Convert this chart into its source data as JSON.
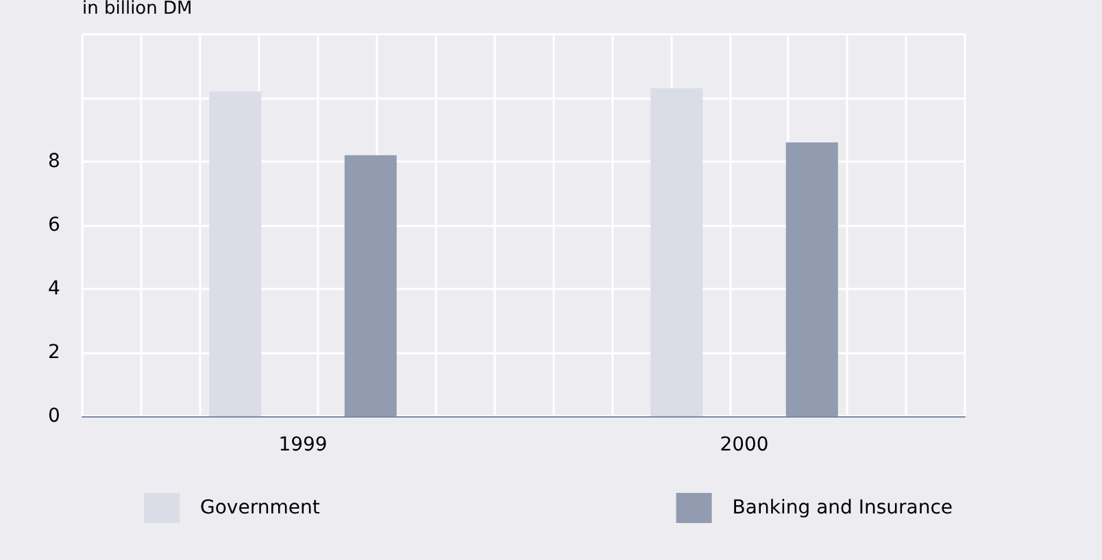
{
  "chart_data": {
    "type": "bar",
    "ylabel": "in billion DM",
    "categories": [
      "1999",
      "2000"
    ],
    "series": [
      {
        "name": "Government",
        "color": "#dadde5",
        "values": [
          10.2,
          10.3
        ]
      },
      {
        "name": "Banking and Insurance",
        "color": "#919cb0",
        "values": [
          8.2,
          8.6
        ]
      }
    ],
    "ylim": [
      0,
      12
    ],
    "yticks": [
      0,
      2,
      4,
      6,
      8,
      {
        "value": 10,
        "label": null
      },
      {
        "value": 12,
        "label": null
      }
    ],
    "grid": true,
    "legend": "bottom"
  }
}
